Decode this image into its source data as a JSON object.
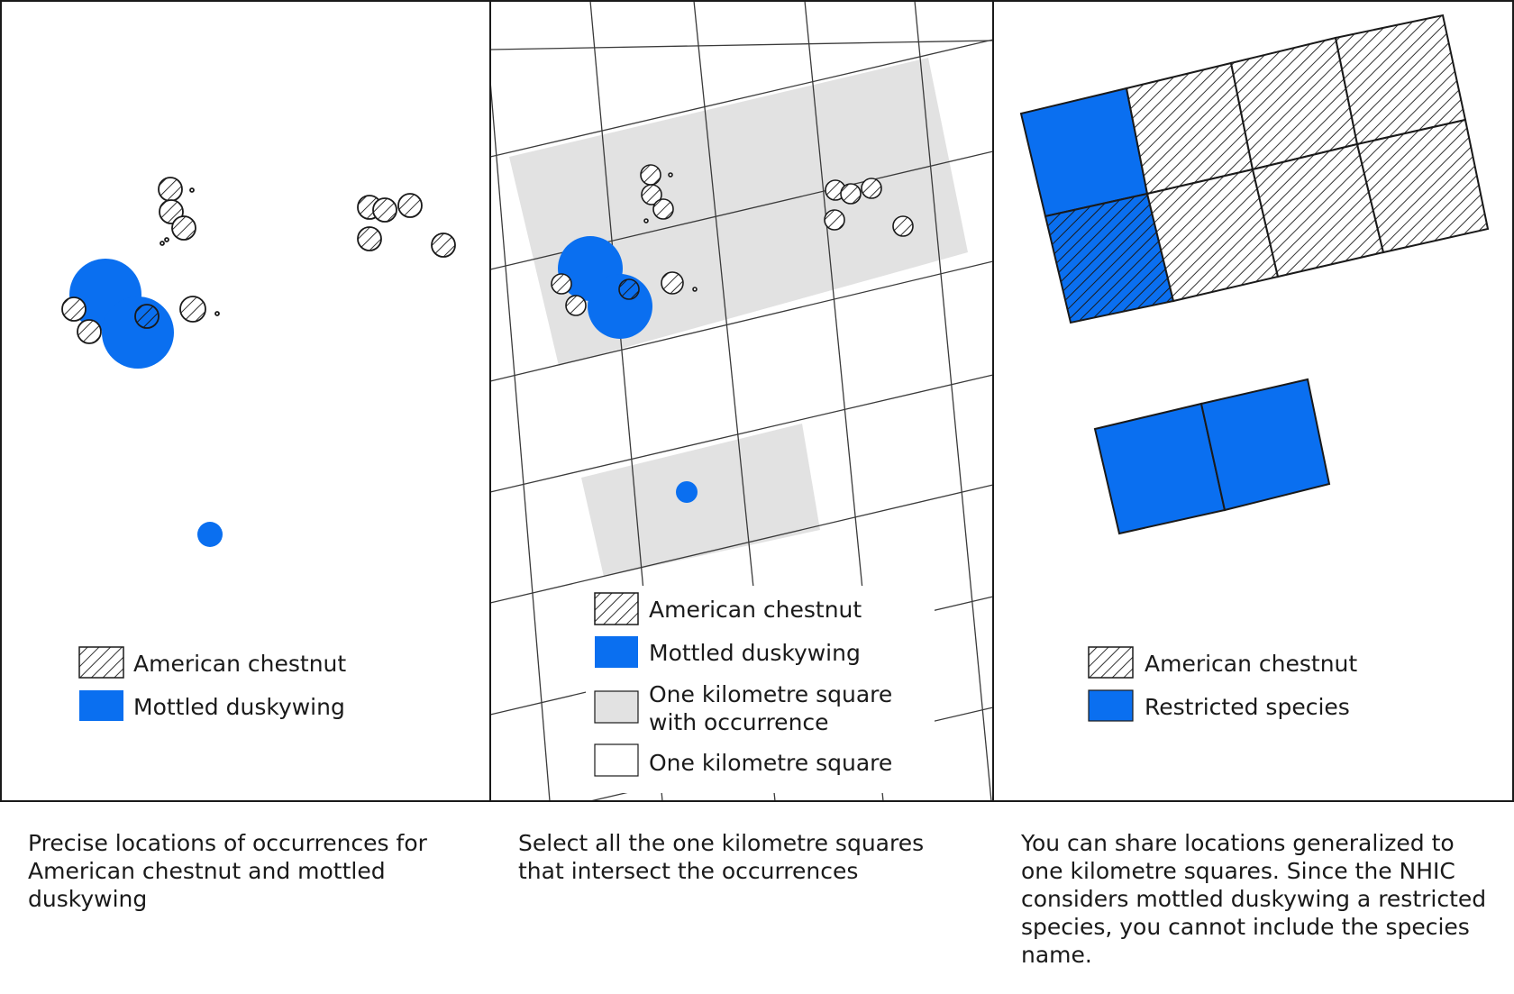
{
  "colors": {
    "restricted": "#0a6ff0",
    "km_square_occurrence": "#e2e2e2",
    "km_square": "#ffffff",
    "outline": "#1a1a1a"
  },
  "panels": [
    {
      "legend": [
        {
          "label": "American chestnut",
          "swatch": "hatch"
        },
        {
          "label": "Mottled duskywing",
          "swatch": "blue"
        }
      ],
      "caption": "Precise locations of occurrences for American chestnut and mottled duskywing"
    },
    {
      "legend": [
        {
          "label": "American chestnut",
          "swatch": "hatch"
        },
        {
          "label": "Mottled duskywing",
          "swatch": "blue"
        },
        {
          "label_line1": "One kilometre square",
          "label_line2": "with occurrence",
          "swatch": "gray"
        },
        {
          "label": "One kilometre square",
          "swatch": "white"
        }
      ],
      "caption": "Select all the one kilometre squares that intersect the occurrences"
    },
    {
      "legend": [
        {
          "label": "American chestnut",
          "swatch": "hatch"
        },
        {
          "label": "Restricted species",
          "swatch": "blue"
        }
      ],
      "caption": "You can share locations generalized to one kilometre squares. Since the NHIC considers mottled duskywing a restricted species, you cannot include the species name."
    }
  ]
}
